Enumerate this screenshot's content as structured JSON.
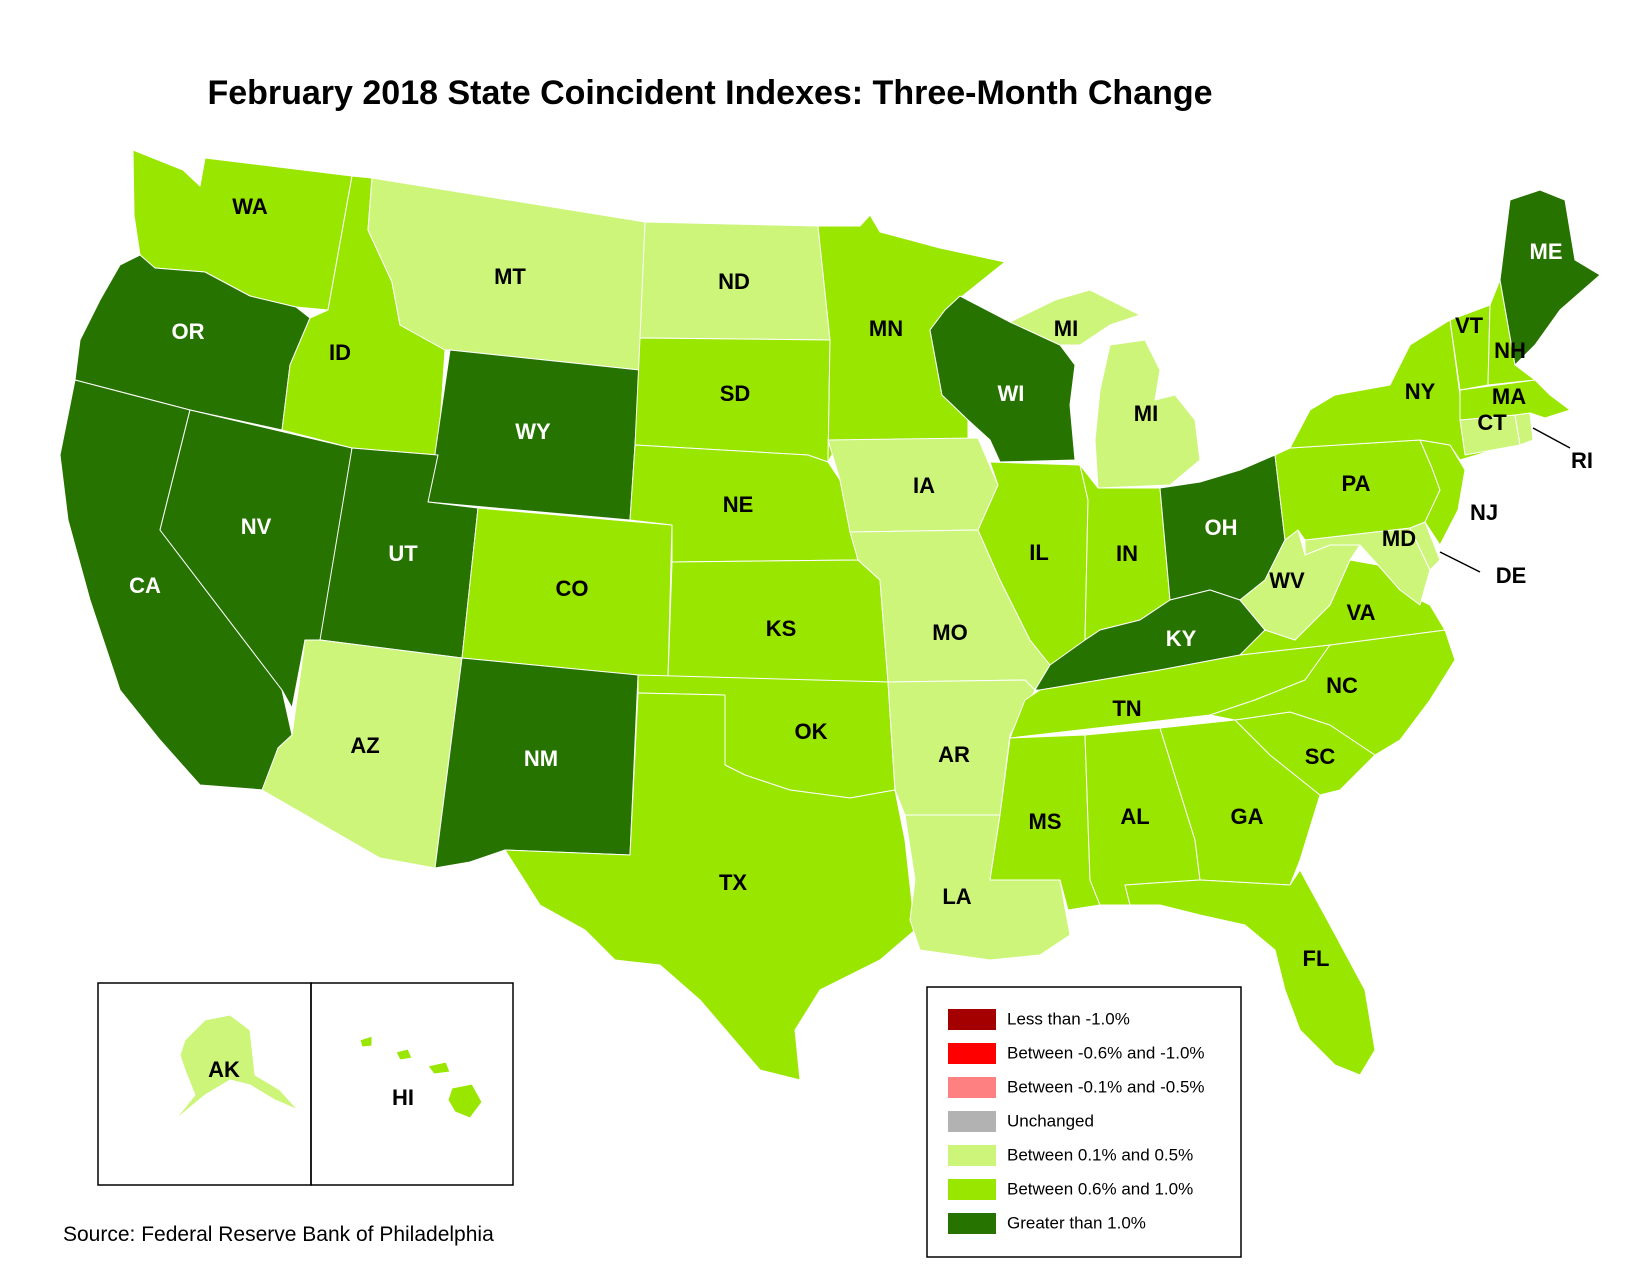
{
  "title": "February 2018 State Coincident Indexes: Three-Month Change",
  "source": "Source: Federal Reserve Bank of Philadelphia",
  "legend": [
    {
      "key": "lt_neg1",
      "label": "Less than -1.0%",
      "color": "#a50000"
    },
    {
      "key": "neg06_neg1",
      "label": "Between -0.6% and -1.0%",
      "color": "#ff0000"
    },
    {
      "key": "neg01_neg05",
      "label": "Between -0.1% and -0.5%",
      "color": "#ff8080"
    },
    {
      "key": "unchanged",
      "label": "Unchanged",
      "color": "#b2b2b2"
    },
    {
      "key": "p01_p05",
      "label": "Between 0.1% and 0.5%",
      "color": "#ccf57a"
    },
    {
      "key": "p06_p10",
      "label": "Between 0.6% and 1.0%",
      "color": "#99e600"
    },
    {
      "key": "gt1",
      "label": "Greater than 1.0%",
      "color": "#267300"
    }
  ],
  "states": [
    {
      "abbr": "WA",
      "category": "p06_p10"
    },
    {
      "abbr": "OR",
      "category": "gt1"
    },
    {
      "abbr": "CA",
      "category": "gt1"
    },
    {
      "abbr": "NV",
      "category": "gt1"
    },
    {
      "abbr": "ID",
      "category": "p06_p10"
    },
    {
      "abbr": "MT",
      "category": "p01_p05"
    },
    {
      "abbr": "WY",
      "category": "gt1"
    },
    {
      "abbr": "UT",
      "category": "gt1"
    },
    {
      "abbr": "AZ",
      "category": "p01_p05"
    },
    {
      "abbr": "CO",
      "category": "p06_p10"
    },
    {
      "abbr": "NM",
      "category": "gt1"
    },
    {
      "abbr": "ND",
      "category": "p01_p05"
    },
    {
      "abbr": "SD",
      "category": "p06_p10"
    },
    {
      "abbr": "NE",
      "category": "p06_p10"
    },
    {
      "abbr": "KS",
      "category": "p06_p10"
    },
    {
      "abbr": "OK",
      "category": "p06_p10"
    },
    {
      "abbr": "TX",
      "category": "p06_p10"
    },
    {
      "abbr": "MN",
      "category": "p06_p10"
    },
    {
      "abbr": "IA",
      "category": "p01_p05"
    },
    {
      "abbr": "MO",
      "category": "p01_p05"
    },
    {
      "abbr": "AR",
      "category": "p01_p05"
    },
    {
      "abbr": "LA",
      "category": "p01_p05"
    },
    {
      "abbr": "WI",
      "category": "gt1"
    },
    {
      "abbr": "IL",
      "category": "p06_p10"
    },
    {
      "abbr": "MI",
      "category": "p01_p05"
    },
    {
      "abbr": "IN",
      "category": "p06_p10"
    },
    {
      "abbr": "OH",
      "category": "gt1"
    },
    {
      "abbr": "KY",
      "category": "gt1"
    },
    {
      "abbr": "TN",
      "category": "p06_p10"
    },
    {
      "abbr": "MS",
      "category": "p06_p10"
    },
    {
      "abbr": "AL",
      "category": "p06_p10"
    },
    {
      "abbr": "GA",
      "category": "p06_p10"
    },
    {
      "abbr": "FL",
      "category": "p06_p10"
    },
    {
      "abbr": "SC",
      "category": "p06_p10"
    },
    {
      "abbr": "NC",
      "category": "p06_p10"
    },
    {
      "abbr": "VA",
      "category": "p06_p10"
    },
    {
      "abbr": "WV",
      "category": "p01_p05"
    },
    {
      "abbr": "MD",
      "category": "p01_p05"
    },
    {
      "abbr": "DE",
      "category": "p01_p05"
    },
    {
      "abbr": "PA",
      "category": "p06_p10"
    },
    {
      "abbr": "NJ",
      "category": "p06_p10"
    },
    {
      "abbr": "NY",
      "category": "p06_p10"
    },
    {
      "abbr": "CT",
      "category": "p01_p05"
    },
    {
      "abbr": "RI",
      "category": "p01_p05"
    },
    {
      "abbr": "MA",
      "category": "p06_p10"
    },
    {
      "abbr": "VT",
      "category": "p06_p10"
    },
    {
      "abbr": "NH",
      "category": "p06_p10"
    },
    {
      "abbr": "ME",
      "category": "gt1"
    },
    {
      "abbr": "AK",
      "category": "p01_p05"
    },
    {
      "abbr": "HI",
      "category": "p06_p10"
    }
  ]
}
